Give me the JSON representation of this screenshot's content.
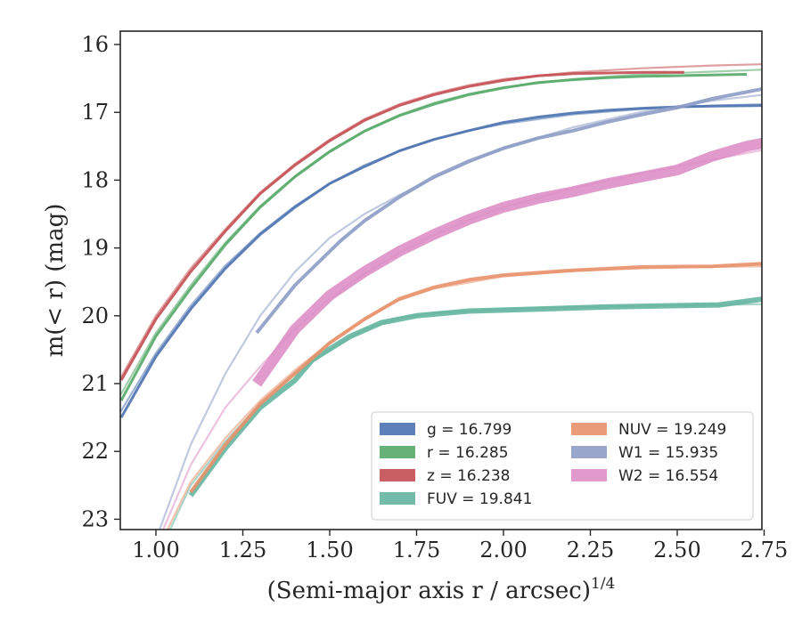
{
  "chart_data": {
    "type": "line",
    "xlabel": "(Semi-major axis r / arcsec)",
    "xlabel_exponent": "1/4",
    "ylabel": "m(< r) (mag)",
    "xlim": [
      0.9,
      2.75
    ],
    "ylim": [
      23.15,
      15.8
    ],
    "y_inverted": true,
    "x_ticks": [
      "1.00",
      "1.25",
      "1.50",
      "1.75",
      "2.00",
      "2.25",
      "2.50",
      "2.75"
    ],
    "y_ticks": [
      "16",
      "17",
      "18",
      "19",
      "20",
      "21",
      "22",
      "23"
    ],
    "grid": false,
    "legend_placement": "lower-right",
    "series": [
      {
        "name": "g = 16.799",
        "color": "#4c72b0",
        "data": [
          [
            0.9,
            21.5
          ],
          [
            1.0,
            20.6
          ],
          [
            1.1,
            19.9
          ],
          [
            1.2,
            19.3
          ],
          [
            1.3,
            18.8
          ],
          [
            1.4,
            18.4
          ],
          [
            1.5,
            18.05
          ],
          [
            1.6,
            17.8
          ],
          [
            1.7,
            17.57
          ],
          [
            1.8,
            17.4
          ],
          [
            1.9,
            17.27
          ],
          [
            2.0,
            17.15
          ],
          [
            2.1,
            17.07
          ],
          [
            2.2,
            17.01
          ],
          [
            2.3,
            16.97
          ],
          [
            2.4,
            16.94
          ],
          [
            2.5,
            16.92
          ],
          [
            2.6,
            16.91
          ],
          [
            2.75,
            16.9
          ]
        ],
        "model": [
          [
            0.9,
            21.4
          ],
          [
            1.0,
            20.55
          ],
          [
            1.1,
            19.85
          ],
          [
            1.2,
            19.26
          ],
          [
            1.3,
            18.78
          ],
          [
            1.4,
            18.38
          ],
          [
            1.5,
            18.05
          ],
          [
            1.6,
            17.78
          ],
          [
            1.7,
            17.57
          ],
          [
            1.8,
            17.4
          ],
          [
            1.9,
            17.27
          ],
          [
            2.0,
            17.17
          ],
          [
            2.2,
            17.03
          ],
          [
            2.4,
            16.95
          ],
          [
            2.6,
            16.9
          ],
          [
            2.75,
            16.88
          ]
        ],
        "band_width": 3
      },
      {
        "name": "r = 16.285",
        "color": "#55a868",
        "data": [
          [
            0.9,
            21.25
          ],
          [
            1.0,
            20.3
          ],
          [
            1.1,
            19.6
          ],
          [
            1.2,
            18.95
          ],
          [
            1.3,
            18.4
          ],
          [
            1.4,
            17.95
          ],
          [
            1.5,
            17.58
          ],
          [
            1.6,
            17.28
          ],
          [
            1.7,
            17.05
          ],
          [
            1.8,
            16.88
          ],
          [
            1.9,
            16.74
          ],
          [
            2.0,
            16.64
          ],
          [
            2.1,
            16.56
          ],
          [
            2.2,
            16.52
          ],
          [
            2.3,
            16.49
          ],
          [
            2.4,
            16.47
          ],
          [
            2.5,
            16.46
          ],
          [
            2.6,
            16.45
          ],
          [
            2.7,
            16.44
          ]
        ],
        "model": [
          [
            0.9,
            21.15
          ],
          [
            1.0,
            20.25
          ],
          [
            1.1,
            19.55
          ],
          [
            1.2,
            18.92
          ],
          [
            1.3,
            18.38
          ],
          [
            1.4,
            17.94
          ],
          [
            1.5,
            17.57
          ],
          [
            1.6,
            17.27
          ],
          [
            1.7,
            17.04
          ],
          [
            1.8,
            16.86
          ],
          [
            1.9,
            16.73
          ],
          [
            2.0,
            16.63
          ],
          [
            2.2,
            16.51
          ],
          [
            2.4,
            16.44
          ],
          [
            2.6,
            16.4
          ],
          [
            2.75,
            16.37
          ]
        ],
        "band_width": 3
      },
      {
        "name": "z = 16.238",
        "color": "#c44e52",
        "data": [
          [
            0.9,
            20.95
          ],
          [
            1.0,
            20.05
          ],
          [
            1.1,
            19.35
          ],
          [
            1.2,
            18.75
          ],
          [
            1.3,
            18.2
          ],
          [
            1.4,
            17.78
          ],
          [
            1.5,
            17.42
          ],
          [
            1.6,
            17.12
          ],
          [
            1.7,
            16.9
          ],
          [
            1.8,
            16.74
          ],
          [
            1.9,
            16.62
          ],
          [
            2.0,
            16.53
          ],
          [
            2.1,
            16.46
          ],
          [
            2.2,
            16.43
          ],
          [
            2.3,
            16.42
          ],
          [
            2.4,
            16.41
          ],
          [
            2.52,
            16.41
          ]
        ],
        "model": [
          [
            0.9,
            20.9
          ],
          [
            1.0,
            20.0
          ],
          [
            1.1,
            19.3
          ],
          [
            1.2,
            18.72
          ],
          [
            1.3,
            18.18
          ],
          [
            1.4,
            17.76
          ],
          [
            1.5,
            17.4
          ],
          [
            1.6,
            17.1
          ],
          [
            1.7,
            16.88
          ],
          [
            1.8,
            16.72
          ],
          [
            1.9,
            16.6
          ],
          [
            2.0,
            16.51
          ],
          [
            2.2,
            16.41
          ],
          [
            2.4,
            16.35
          ],
          [
            2.6,
            16.31
          ],
          [
            2.75,
            16.29
          ]
        ],
        "band_width": 3
      },
      {
        "name": "FUV = 19.841",
        "color": "#64b5a0",
        "data": [
          [
            1.1,
            22.65
          ],
          [
            1.2,
            21.95
          ],
          [
            1.3,
            21.35
          ],
          [
            1.4,
            20.95
          ],
          [
            1.45,
            20.65
          ],
          [
            1.56,
            20.3
          ],
          [
            1.65,
            20.1
          ],
          [
            1.75,
            20.0
          ],
          [
            1.9,
            19.93
          ],
          [
            2.1,
            19.9
          ],
          [
            2.3,
            19.87
          ],
          [
            2.5,
            19.85
          ],
          [
            2.62,
            19.84
          ],
          [
            2.75,
            19.75
          ]
        ],
        "model": [
          [
            1.0,
            23.6
          ],
          [
            1.1,
            22.5
          ],
          [
            1.2,
            21.85
          ],
          [
            1.3,
            21.3
          ],
          [
            1.4,
            20.85
          ],
          [
            1.5,
            20.5
          ],
          [
            1.6,
            20.2
          ],
          [
            1.7,
            20.03
          ],
          [
            1.8,
            19.96
          ],
          [
            2.0,
            19.9
          ],
          [
            2.3,
            19.86
          ],
          [
            2.6,
            19.84
          ],
          [
            2.75,
            19.83
          ]
        ],
        "band_width": 6
      },
      {
        "name": "NUV = 19.249",
        "color": "#e8916b",
        "data": [
          [
            1.1,
            22.6
          ],
          [
            1.2,
            21.9
          ],
          [
            1.3,
            21.3
          ],
          [
            1.4,
            20.85
          ],
          [
            1.5,
            20.4
          ],
          [
            1.6,
            20.05
          ],
          [
            1.7,
            19.75
          ],
          [
            1.8,
            19.58
          ],
          [
            1.9,
            19.47
          ],
          [
            2.0,
            19.4
          ],
          [
            2.2,
            19.33
          ],
          [
            2.4,
            19.28
          ],
          [
            2.6,
            19.27
          ],
          [
            2.75,
            19.23
          ]
        ],
        "model": [
          [
            1.0,
            23.5
          ],
          [
            1.1,
            22.45
          ],
          [
            1.2,
            21.8
          ],
          [
            1.3,
            21.25
          ],
          [
            1.4,
            20.8
          ],
          [
            1.5,
            20.4
          ],
          [
            1.6,
            20.05
          ],
          [
            1.7,
            19.77
          ],
          [
            1.8,
            19.6
          ],
          [
            2.0,
            19.42
          ],
          [
            2.2,
            19.34
          ],
          [
            2.4,
            19.3
          ],
          [
            2.6,
            19.28
          ],
          [
            2.75,
            19.27
          ]
        ],
        "band_width": 4
      },
      {
        "name": "W1 = 15.935",
        "color": "#8c9cc4",
        "data": [
          [
            1.29,
            20.25
          ],
          [
            1.4,
            19.55
          ],
          [
            1.53,
            18.9
          ],
          [
            1.6,
            18.6
          ],
          [
            1.7,
            18.25
          ],
          [
            1.8,
            17.95
          ],
          [
            1.9,
            17.72
          ],
          [
            2.0,
            17.53
          ],
          [
            2.1,
            17.38
          ],
          [
            2.2,
            17.27
          ],
          [
            2.3,
            17.14
          ],
          [
            2.4,
            17.03
          ],
          [
            2.5,
            16.93
          ],
          [
            2.6,
            16.8
          ],
          [
            2.75,
            16.65
          ]
        ],
        "model": [
          [
            1.0,
            23.3
          ],
          [
            1.1,
            21.9
          ],
          [
            1.2,
            20.85
          ],
          [
            1.3,
            20.0
          ],
          [
            1.4,
            19.35
          ],
          [
            1.5,
            18.85
          ],
          [
            1.6,
            18.5
          ],
          [
            1.7,
            18.22
          ],
          [
            1.8,
            17.97
          ],
          [
            1.9,
            17.74
          ],
          [
            2.0,
            17.53
          ],
          [
            2.2,
            17.22
          ],
          [
            2.4,
            16.99
          ],
          [
            2.6,
            16.83
          ],
          [
            2.75,
            16.74
          ]
        ],
        "band_width": 4
      },
      {
        "name": "W2 = 16.554",
        "color": "#dd8fc5",
        "data": [
          [
            1.29,
            21.0
          ],
          [
            1.4,
            20.2
          ],
          [
            1.5,
            19.7
          ],
          [
            1.6,
            19.35
          ],
          [
            1.7,
            19.05
          ],
          [
            1.8,
            18.8
          ],
          [
            1.9,
            18.58
          ],
          [
            2.0,
            18.4
          ],
          [
            2.1,
            18.27
          ],
          [
            2.2,
            18.17
          ],
          [
            2.3,
            18.05
          ],
          [
            2.4,
            17.95
          ],
          [
            2.5,
            17.85
          ],
          [
            2.6,
            17.65
          ],
          [
            2.7,
            17.5
          ],
          [
            2.75,
            17.45
          ]
        ],
        "model": [
          [
            1.0,
            23.4
          ],
          [
            1.1,
            22.2
          ],
          [
            1.2,
            21.35
          ],
          [
            1.3,
            20.75
          ],
          [
            1.4,
            20.2
          ],
          [
            1.5,
            19.75
          ],
          [
            1.6,
            19.38
          ],
          [
            1.7,
            19.07
          ],
          [
            1.8,
            18.81
          ],
          [
            1.9,
            18.59
          ],
          [
            2.0,
            18.4
          ],
          [
            2.2,
            18.12
          ],
          [
            2.4,
            17.9
          ],
          [
            2.6,
            17.7
          ],
          [
            2.75,
            17.55
          ]
        ],
        "band_width": 12
      }
    ]
  }
}
